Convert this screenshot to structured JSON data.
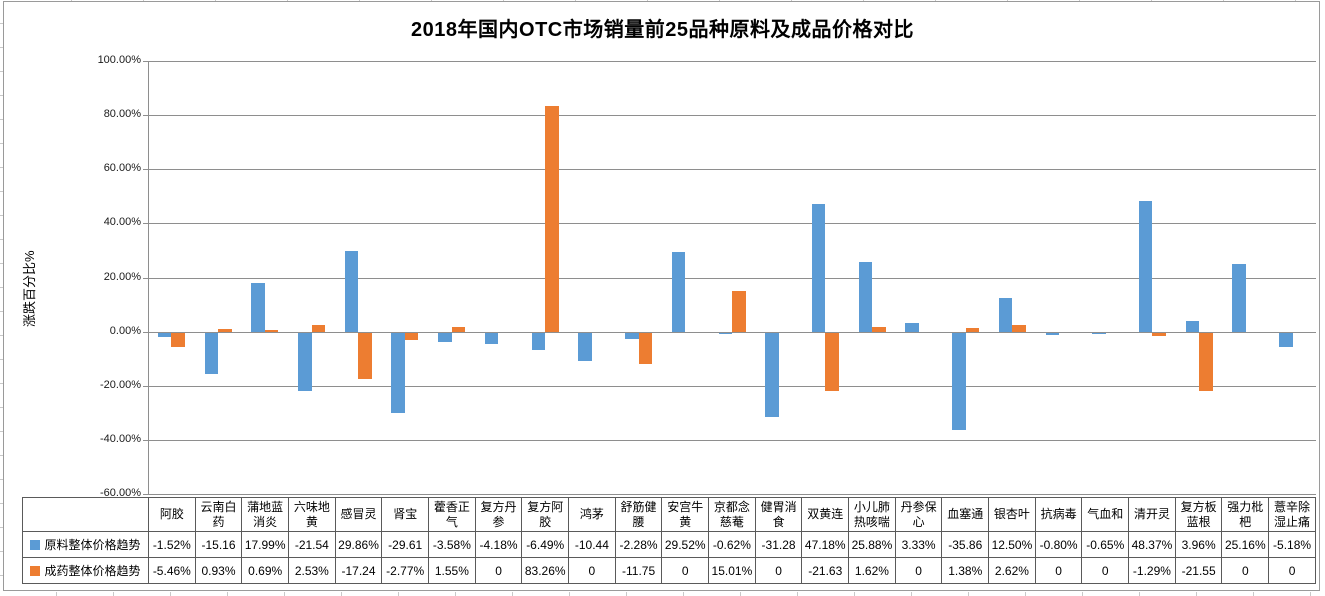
{
  "chart_data": {
    "type": "bar",
    "title": "2018年国内OTC市场销量前25品种原料及成品价格对比",
    "xlabel": "",
    "ylabel": "涨跌百分比%",
    "ylim": [
      -60,
      100
    ],
    "ytick_step": 20,
    "yticks": [
      "100.00%",
      "80.00%",
      "60.00%",
      "40.00%",
      "20.00%",
      "0.00%",
      "-20.00%",
      "-40.00%",
      "-60.00%"
    ],
    "grid": true,
    "legend_position": "data-table-left",
    "categories": [
      "阿胶",
      "云南白药",
      "蒲地蓝消炎",
      "六味地黄",
      "感冒灵",
      "肾宝",
      "藿香正气",
      "复方丹参",
      "复方阿胶",
      "鸿茅",
      "舒筋健腰",
      "安宫牛黄",
      "京都念慈菴",
      "健胃消食",
      "双黄连",
      "小儿肺热咳喘",
      "丹参保心",
      "血塞通",
      "银杏叶",
      "抗病毒",
      "气血和",
      "清开灵",
      "复方板蓝根",
      "强力枇杷",
      "薏辛除湿止痛"
    ],
    "series": [
      {
        "name": "原料整体价格趋势",
        "color": "#5B9BD5",
        "values": [
          -1.52,
          -15.16,
          17.99,
          -21.54,
          29.86,
          -29.61,
          -3.58,
          -4.18,
          -6.49,
          -10.44,
          -2.28,
          29.52,
          -0.62,
          -31.28,
          47.18,
          25.88,
          3.33,
          -35.86,
          12.5,
          -0.8,
          -0.65,
          48.37,
          3.96,
          25.16,
          -5.18
        ],
        "display": [
          "-1.52%",
          "-15.16",
          "17.99%",
          "-21.54",
          "29.86%",
          "-29.61",
          "-3.58%",
          "-4.18%",
          "-6.49%",
          "-10.44",
          "-2.28%",
          "29.52%",
          "-0.62%",
          "-31.28",
          "47.18%",
          "25.88%",
          "3.33%",
          "-35.86",
          "12.50%",
          "-0.80%",
          "-0.65%",
          "48.37%",
          "3.96%",
          "25.16%",
          "-5.18%"
        ]
      },
      {
        "name": "成药整体价格趋势",
        "color": "#ED7D31",
        "values": [
          -5.46,
          0.93,
          0.69,
          2.53,
          -17.24,
          -2.77,
          1.55,
          0,
          83.26,
          0,
          -11.75,
          0,
          15.01,
          0,
          -21.63,
          1.62,
          0,
          1.38,
          2.62,
          0,
          0,
          -1.29,
          -21.55,
          0,
          0
        ],
        "display": [
          "-5.46%",
          "0.93%",
          "0.69%",
          "2.53%",
          "-17.24",
          "-2.77%",
          "1.55%",
          "0",
          "83.26%",
          "0",
          "-11.75",
          "0",
          "15.01%",
          "0",
          "-21.63",
          "1.62%",
          "0",
          "1.38%",
          "2.62%",
          "0",
          "0",
          "-1.29%",
          "-21.55",
          "0",
          "0"
        ]
      }
    ]
  },
  "colors": {
    "gridline": "#8e8e8e",
    "table_border": "#5a5a5a",
    "frame_border": "#9a9a9a"
  }
}
